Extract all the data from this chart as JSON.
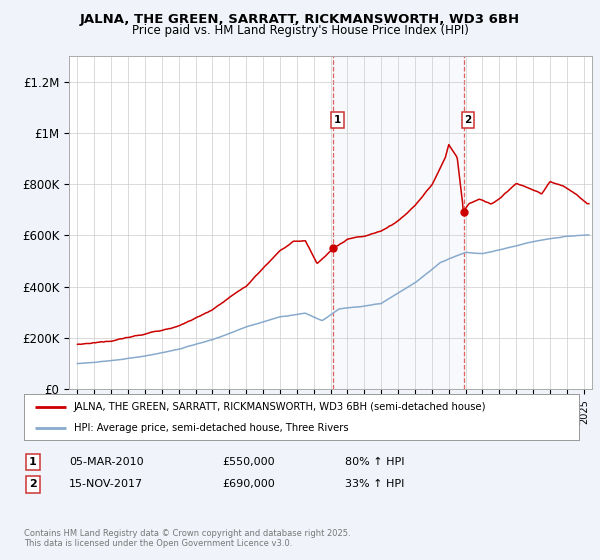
{
  "title": "JALNA, THE GREEN, SARRATT, RICKMANSWORTH, WD3 6BH",
  "subtitle": "Price paid vs. HM Land Registry's House Price Index (HPI)",
  "ylim": [
    0,
    1300000
  ],
  "xlim_start": 1994.5,
  "xlim_end": 2025.5,
  "sale1_date": 2010.17,
  "sale1_price": 550000,
  "sale1_label": "1",
  "sale2_date": 2017.88,
  "sale2_price": 690000,
  "sale2_label": "2",
  "red_line_color": "#cc0000",
  "blue_line_color": "#88aacc",
  "background_color": "#f0f4fa",
  "plot_bg_color": "#ffffff",
  "legend_label_red": "JALNA, THE GREEN, SARRATT, RICKMANSWORTH, WD3 6BH (semi-detached house)",
  "legend_label_blue": "HPI: Average price, semi-detached house, Three Rivers",
  "annotation1_text": "05-MAR-2010",
  "annotation1_price": "£550,000",
  "annotation1_hpi": "80% ↑ HPI",
  "annotation2_text": "15-NOV-2017",
  "annotation2_price": "£690,000",
  "annotation2_hpi": "33% ↑ HPI",
  "footer": "Contains HM Land Registry data © Crown copyright and database right 2025.\nThis data is licensed under the Open Government Licence v3.0."
}
